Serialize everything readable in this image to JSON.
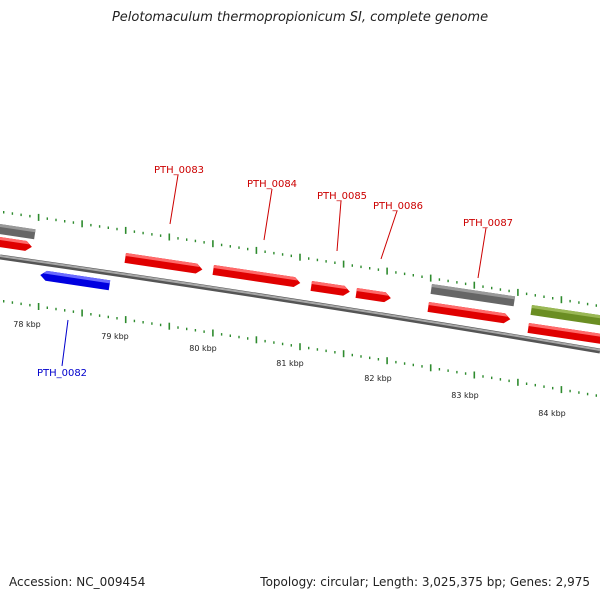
{
  "title": "Pelotomaculum thermopropionicum SI, complete genome",
  "colors": {
    "background": "#ffffff",
    "backbone": "#8a8a8a",
    "tick": "#2e8b2e",
    "forward_gene": "#ff0000",
    "forward_label": "#cc0000",
    "reverse_gene": "#0000ff",
    "reverse_label": "#0000cc",
    "gray_gene": "#777777",
    "olive_gene": "#7aa02c"
  },
  "scale_labels": [
    "78 kbp",
    "79 kbp",
    "80 kbp",
    "81 kbp",
    "82 kbp",
    "83 kbp",
    "84 kbp"
  ],
  "gene_labels": [
    {
      "id": "PTH_0082",
      "strand": "reverse"
    },
    {
      "id": "PTH_0083",
      "strand": "forward"
    },
    {
      "id": "PTH_0084",
      "strand": "forward"
    },
    {
      "id": "PTH_0085",
      "strand": "forward"
    },
    {
      "id": "PTH_0086",
      "strand": "forward"
    },
    {
      "id": "PTH_0087",
      "strand": "forward"
    }
  ],
  "footer": {
    "accession_label": "Accession:",
    "accession_value": "NC_009454",
    "topology_label": "Topology:",
    "topology_value": "circular;",
    "length_label": "Length:",
    "length_value": "3,025,375 bp;",
    "genes_label": "Genes:",
    "genes_value": "2,975"
  }
}
